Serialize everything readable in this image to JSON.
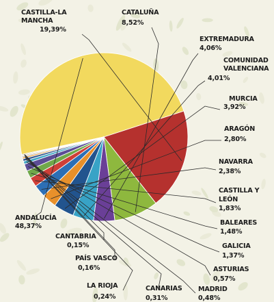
{
  "chart_data": {
    "type": "pie",
    "title": "",
    "slices": [
      {
        "label": "ANDALUCÍA",
        "value": 48.37,
        "value_text": "48,37%",
        "color": "#f2d95e"
      },
      {
        "label": "CASTILLA-LA MANCHA",
        "value": 19.39,
        "value_text": "19,39%",
        "color": "#b5312e"
      },
      {
        "label": "CATALUÑA",
        "value": 8.52,
        "value_text": "8,52%",
        "color": "#8eb83e"
      },
      {
        "label": "EXTREMADURA",
        "value": 4.06,
        "value_text": "4,06%",
        "color": "#6a3f97"
      },
      {
        "label": "COMUNIDAD VALENCIANA",
        "value": 4.01,
        "value_text": "4,01%",
        "color": "#38a3c6"
      },
      {
        "label": "MURCIA",
        "value": 3.92,
        "value_text": "3,92%",
        "color": "#22548e"
      },
      {
        "label": "ARAGÓN",
        "value": 2.8,
        "value_text": "2,80%",
        "color": "#e8902a"
      },
      {
        "label": "NAVARRA",
        "value": 2.38,
        "value_text": "2,38%",
        "color": "#2d6fb5"
      },
      {
        "label": "CASTILLA Y LEÓN",
        "value": 1.83,
        "value_text": "1,83%",
        "color": "#cf3f37"
      },
      {
        "label": "BALEARES",
        "value": 1.48,
        "value_text": "1,48%",
        "color": "#70a84a"
      },
      {
        "label": "GALICIA",
        "value": 1.37,
        "value_text": "1,37%",
        "color": "#5c4d96"
      },
      {
        "label": "ASTURIAS",
        "value": 0.57,
        "value_text": "0,57%",
        "color": "#45a8c6"
      },
      {
        "label": "MADRID",
        "value": 0.48,
        "value_text": "0,48%",
        "color": "#36588e"
      },
      {
        "label": "CANARIAS",
        "value": 0.31,
        "value_text": "0,31%",
        "color": "#e59c3c"
      },
      {
        "label": "LA RIOJA",
        "value": 0.24,
        "value_text": "0,24%",
        "color": "#a8a8a8"
      },
      {
        "label": "PAÍS VASCO",
        "value": 0.16,
        "value_text": "0,16%",
        "color": "#c9a83c"
      },
      {
        "label": "CANTABRIA",
        "value": 0.15,
        "value_text": "0,15%",
        "color": "#7f7f7f"
      }
    ]
  }
}
